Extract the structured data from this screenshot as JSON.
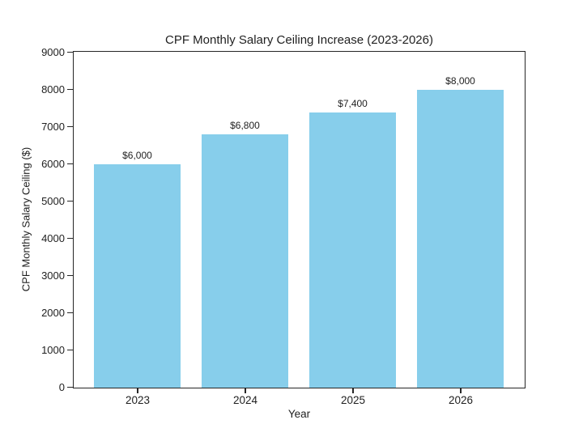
{
  "chart_data": {
    "type": "bar",
    "title": "CPF Monthly Salary Ceiling Increase (2023-2026)",
    "xlabel": "Year",
    "ylabel": "CPF Monthly Salary Ceiling ($)",
    "categories": [
      "2023",
      "2024",
      "2025",
      "2026"
    ],
    "values": [
      6000,
      6800,
      7400,
      8000
    ],
    "value_labels": [
      "$6,000",
      "$6,800",
      "$7,400",
      "$8,000"
    ],
    "yticks": [
      0,
      1000,
      2000,
      3000,
      4000,
      5000,
      6000,
      7000,
      8000,
      9000
    ],
    "ylim": [
      0,
      9000
    ],
    "grid": false,
    "legend_position": "none",
    "bar_color": "#87CEEB",
    "axis_color": "#262626",
    "text_color": "#1f1f1f",
    "background_color": "#ffffff"
  }
}
